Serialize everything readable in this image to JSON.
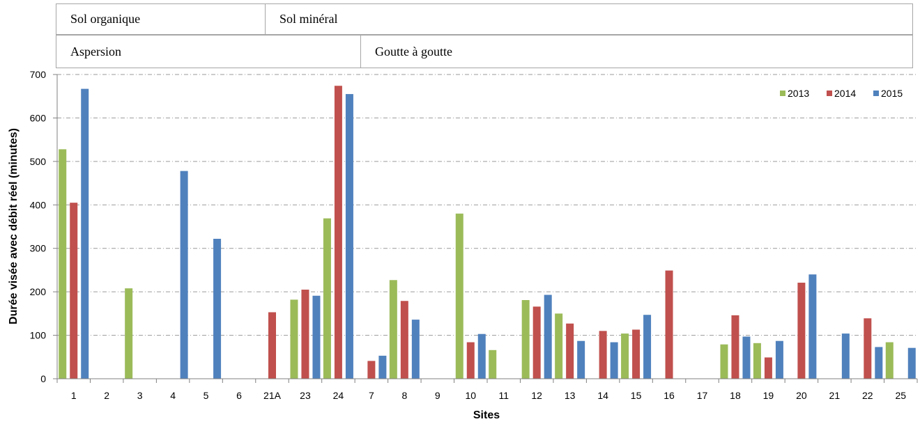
{
  "header": {
    "row1": [
      "Sol organique",
      "Sol minéral"
    ],
    "row2": [
      "Aspersion",
      "Goutte à goutte"
    ]
  },
  "chart_data": {
    "type": "bar",
    "xlabel": "Sites",
    "ylabel": "Durée visée avec débit réel (minutes)",
    "ylim": [
      0,
      700
    ],
    "yticks": [
      0,
      100,
      200,
      300,
      400,
      500,
      600,
      700
    ],
    "grid": true,
    "legend_position": "top-right",
    "categories": [
      "1",
      "2",
      "3",
      "4",
      "5",
      "6",
      "21A",
      "23",
      "24",
      "7",
      "8",
      "9",
      "10",
      "11",
      "12",
      "13",
      "14",
      "15",
      "16",
      "17",
      "18",
      "19",
      "20",
      "21",
      "22",
      "25"
    ],
    "series": [
      {
        "name": "2013",
        "color": "#9bbb59",
        "values": [
          528,
          null,
          208,
          null,
          null,
          null,
          null,
          182,
          369,
          null,
          227,
          null,
          380,
          66,
          181,
          150,
          null,
          104,
          null,
          null,
          79,
          82,
          null,
          null,
          null,
          84
        ]
      },
      {
        "name": "2014",
        "color": "#c0504d",
        "values": [
          405,
          null,
          null,
          null,
          null,
          null,
          153,
          205,
          674,
          41,
          179,
          null,
          84,
          null,
          166,
          127,
          110,
          113,
          249,
          null,
          146,
          49,
          221,
          null,
          139,
          null
        ]
      },
      {
        "name": "2015",
        "color": "#4f81bd",
        "values": [
          667,
          null,
          null,
          478,
          322,
          null,
          null,
          191,
          655,
          53,
          136,
          null,
          103,
          null,
          193,
          87,
          84,
          147,
          null,
          null,
          97,
          87,
          240,
          104,
          73,
          71
        ]
      }
    ]
  }
}
